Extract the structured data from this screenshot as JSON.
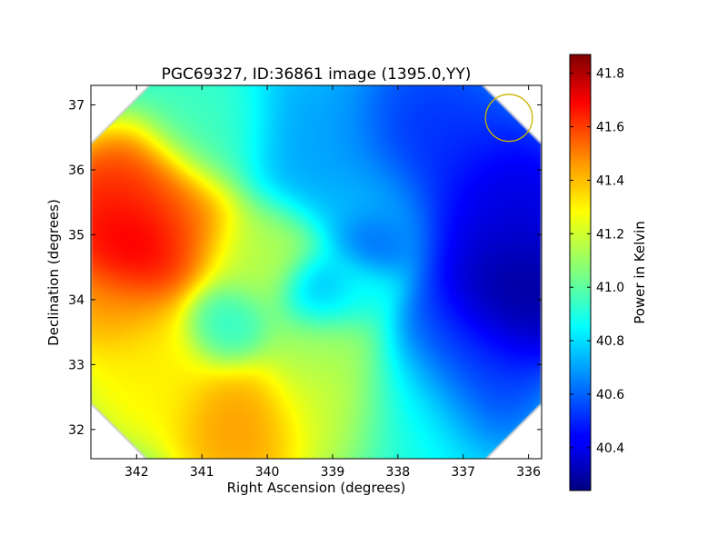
{
  "chart_data": {
    "type": "heatmap",
    "title": "PGC69327, ID:36861 image (1395.0,YY)",
    "xlabel": "Right Ascension (degrees)",
    "ylabel": "Declination (degrees)",
    "xlim": [
      342.7,
      335.8
    ],
    "ylim": [
      31.55,
      37.3
    ],
    "x_ticks": [
      342,
      341,
      340,
      339,
      338,
      337,
      336
    ],
    "y_ticks": [
      32,
      33,
      34,
      35,
      36,
      37
    ],
    "x_tick_labels": [
      "342",
      "341",
      "340",
      "339",
      "338",
      "337",
      "336"
    ],
    "y_tick_labels": [
      "32",
      "33",
      "34",
      "35",
      "36",
      "37"
    ],
    "colorbar": {
      "label": "Power in Kelvin",
      "min": 40.24,
      "max": 41.87,
      "ticks": [
        40.4,
        40.6,
        40.8,
        41.0,
        41.2,
        41.4,
        41.6,
        41.8
      ],
      "tick_labels": [
        "40.4",
        "40.6",
        "40.8",
        "41.0",
        "41.2",
        "41.4",
        "41.6",
        "41.8"
      ],
      "colormap": "jet"
    },
    "field_center": {
      "ra": 339.25,
      "dec": 34.4
    },
    "field_half_extent_deg": 3.45,
    "field_shape": "octagon",
    "features": [
      {
        "ra": 342.0,
        "dec": 34.8,
        "value": 41.85,
        "radius": 0.6
      },
      {
        "ra": 342.2,
        "dec": 35.3,
        "value": 41.7,
        "radius": 0.8
      },
      {
        "ra": 341.6,
        "dec": 35.2,
        "value": 41.5,
        "radius": 0.9
      },
      {
        "ra": 342.3,
        "dec": 34.0,
        "value": 41.45,
        "radius": 0.7
      },
      {
        "ra": 340.4,
        "dec": 32.1,
        "value": 41.45,
        "radius": 0.8
      },
      {
        "ra": 341.8,
        "dec": 32.9,
        "value": 41.3,
        "radius": 0.8
      },
      {
        "ra": 340.0,
        "dec": 34.6,
        "value": 41.15,
        "radius": 0.7
      },
      {
        "ra": 339.0,
        "dec": 32.5,
        "value": 41.2,
        "radius": 0.8
      },
      {
        "ra": 340.8,
        "dec": 36.6,
        "value": 40.95,
        "radius": 0.7
      },
      {
        "ra": 339.2,
        "dec": 33.4,
        "value": 41.1,
        "radius": 0.7
      },
      {
        "ra": 338.7,
        "dec": 34.2,
        "value": 40.85,
        "radius": 0.5
      },
      {
        "ra": 340.6,
        "dec": 33.6,
        "value": 40.9,
        "radius": 0.5
      },
      {
        "ra": 339.2,
        "dec": 34.1,
        "value": 40.6,
        "radius": 0.45
      },
      {
        "ra": 338.4,
        "dec": 34.9,
        "value": 40.55,
        "radius": 0.4
      },
      {
        "ra": 338.4,
        "dec": 35.4,
        "value": 40.75,
        "radius": 0.7
      },
      {
        "ra": 339.3,
        "dec": 36.4,
        "value": 40.7,
        "radius": 0.9
      },
      {
        "ra": 337.5,
        "dec": 36.4,
        "value": 40.5,
        "radius": 1.0
      },
      {
        "ra": 336.4,
        "dec": 35.4,
        "value": 40.35,
        "radius": 0.9
      },
      {
        "ra": 336.2,
        "dec": 34.1,
        "value": 40.24,
        "radius": 0.8
      },
      {
        "ra": 337.0,
        "dec": 33.0,
        "value": 40.5,
        "radius": 0.9
      },
      {
        "ra": 337.8,
        "dec": 32.3,
        "value": 40.9,
        "radius": 0.8
      }
    ],
    "base_value": 40.9,
    "beam_marker": {
      "ra": 336.3,
      "dec": 36.8,
      "radius_deg": 0.36,
      "color": "#c8b400"
    }
  }
}
